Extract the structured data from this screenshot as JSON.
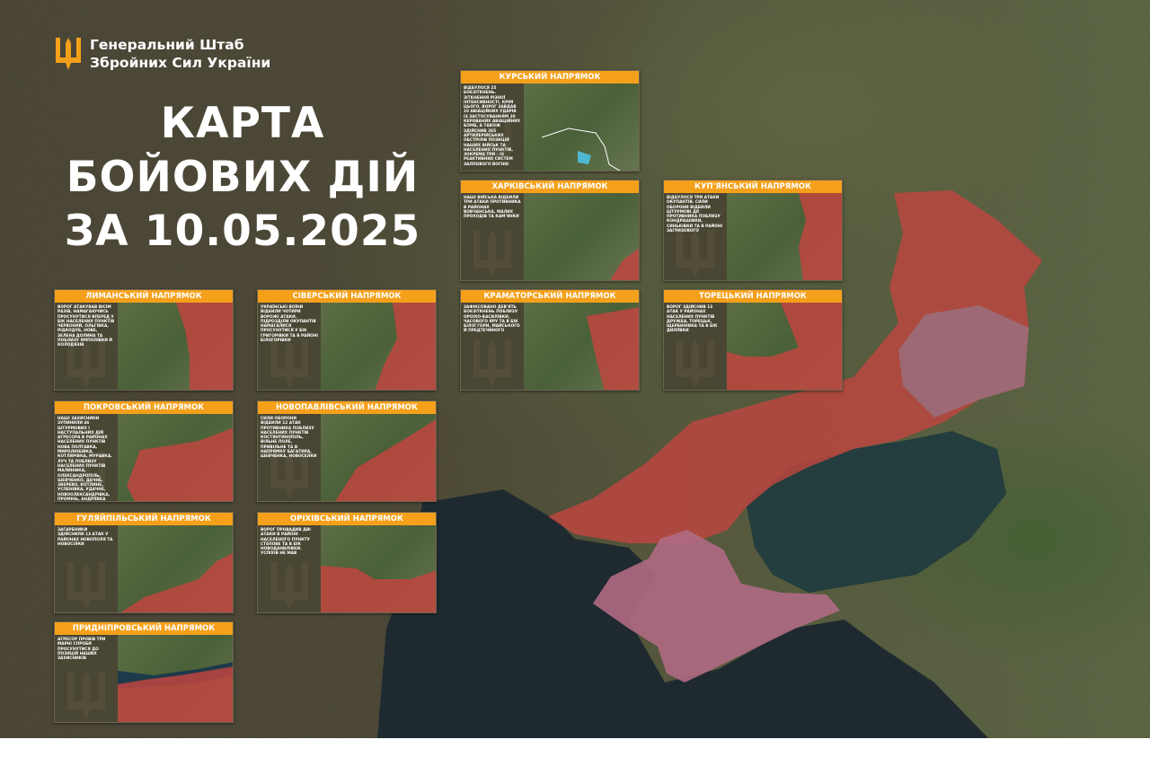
{
  "header": {
    "org_line1": "Генеральний Штаб",
    "org_line2": "Збройних Сил України",
    "title_line1": "КАРТА",
    "title_line2": "БОЙОВИХ ДІЙ",
    "title_line3": "ЗА 10.05.2025"
  },
  "colors": {
    "accent": "#f5a01a",
    "occupied": "#c0453f",
    "occupied_old": "#9a6f7e",
    "crimea": "#b06a84",
    "panel": "#4a4634"
  },
  "cards": [
    {
      "id": "kursk",
      "title": "КУРСЬКИЙ НАПРЯМОК",
      "desc": "Відбулося 25 боєзіткнень. Зіткнення різної інтенсивності. Крім цього, ворог завдав 10 авіаційних ударів із застосуванням 20 керованих авіаційних бомб, а також здійснив 265 артилерійських обстрілів позицій наших військ та населених пунктів, зокрема три – із реактивних систем залпового вогню"
    },
    {
      "id": "kharkiv",
      "title": "ХАРКІВСЬКИЙ НАПРЯМОК",
      "desc": "Наші війська відбили три атаки противника в районах Вовчанська, Малих Проходів та Кам'янки"
    },
    {
      "id": "kupiansk",
      "title": "КУП'ЯНСЬКИЙ НАПРЯМОК",
      "desc": "Відбулося три атаки окупантів. Сили оборони відбили штурмові дії противника поблизу Кондрашівки, Синьківки та в районі Загризового"
    },
    {
      "id": "kramatorsk",
      "title": "КРАМАТОРСЬКИЙ НАПРЯМОК",
      "desc": "Зафіксовано дев'ять боєзіткнень поблизу Ороіхо-Василівки, Часового Яру та в бік Білої Гори, Майського й Предтечиного"
    },
    {
      "id": "toretsk",
      "title": "ТОРЕЦЬКИЙ НАПРЯМОК",
      "desc": "Ворог здійснив 13 атак у районах населених пунктів Дружба, Торецьк, Щербинівка та в бік Диліївки"
    },
    {
      "id": "lyman",
      "title": "ЛИМАНСЬКИЙ НАПРЯМОК",
      "desc": "Ворог атакував вісім разів, намагаючись просунутися вперед у бік населених пунктів Червоний, Ольгівка, Рідкодуб, Нове, Зелена Долина та поблизу Ямполівки й Колодязів"
    },
    {
      "id": "siversk",
      "title": "СІВЕРСЬКИЙ НАПРЯМОК",
      "desc": "Українські воїни відбили чотири ворожі атаки. Підрозділи окупантів намагалися просунутися у бік Григорівки та в районі Білогорівки"
    },
    {
      "id": "pokrovsk",
      "title": "ПОКРОВСЬКИЙ НАПРЯМОК",
      "desc": "Наші захисники зупинили 46 штурмових і наступальних дій агресора в районах населених пунктів Нова Полтавка, Миролюбівка, Котлярівка, Муравка, Луч та поблизу населених пунктів Малинівка, Олександропіль, Шевченко, Дачне, Зверево, Котлине, Успенівка, Удачне, Новоолександрівка, Промінь, Андріївка"
    },
    {
      "id": "novopavlivka",
      "title": "НОВОПАВЛІВСЬКИЙ НАПРЯМОК",
      "desc": "Сили оборони відбили 12 атак противника поблизу населених пунктів Костянтинопіль, Вільне Поле, Привільне та в напрямку Багатира, Шевченка, Новоселки"
    },
    {
      "id": "huliaipole",
      "title": "ГУЛЯЙПІЛЬСЬКИЙ НАПРЯМОК",
      "desc": "Загарбники здійснили 13 атак у районах Новополя та Новосілки"
    },
    {
      "id": "orikhiv",
      "title": "ОРІХІВСЬКИЙ НАПРЯМОК",
      "desc": "Ворог провадив дві атаки в районі населеного пункту Степове та в бік Новоданилівки. Успіхів не мав"
    },
    {
      "id": "prydniprovskyi",
      "title": "ПРИДНІПРОВСЬКИЙ НАПРЯМОК",
      "desc": "Агресор провів три марні спроби просунутися до позицій наших захисників"
    }
  ]
}
